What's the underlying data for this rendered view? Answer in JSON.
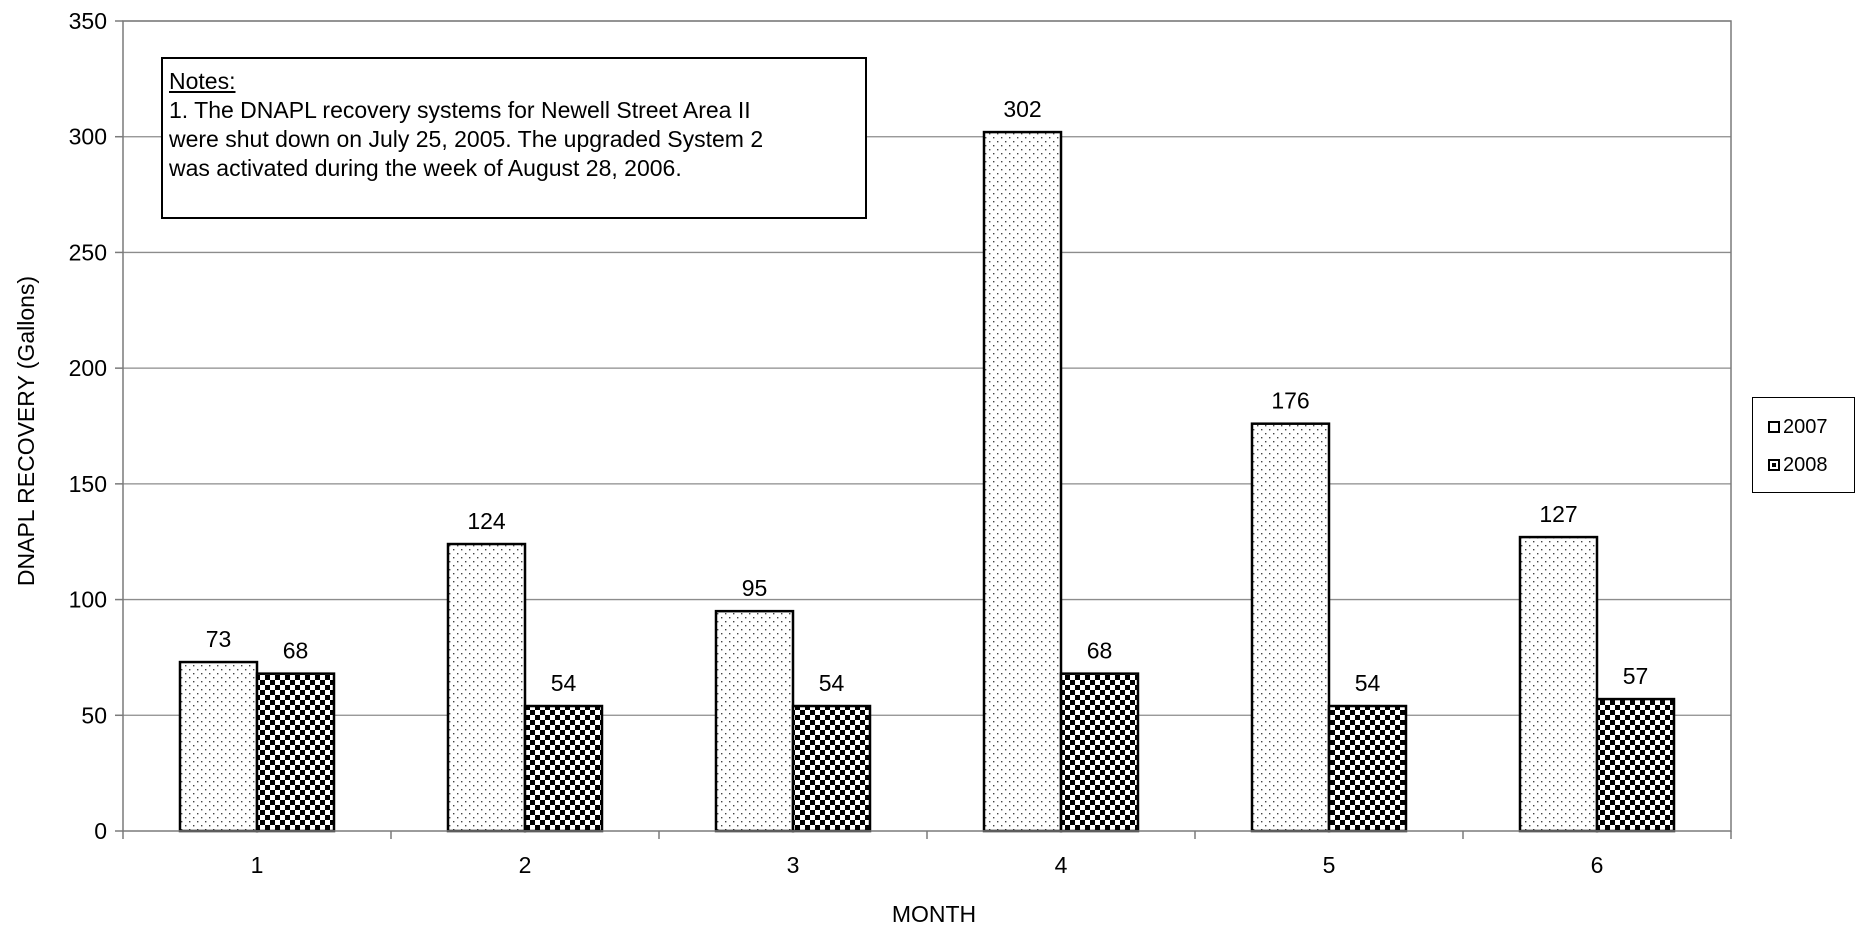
{
  "chart_data": {
    "type": "bar",
    "categories": [
      "1",
      "2",
      "3",
      "4",
      "5",
      "6"
    ],
    "series": [
      {
        "name": "2007",
        "values": [
          73,
          124,
          95,
          302,
          176,
          127
        ],
        "pattern": "dots"
      },
      {
        "name": "2008",
        "values": [
          68,
          54,
          54,
          68,
          54,
          57
        ],
        "pattern": "checker"
      }
    ],
    "title": "",
    "xlabel": "MONTH",
    "ylabel": "DNAPL RECOVERY (Gallons)",
    "ylim": [
      0,
      350
    ],
    "yticks": [
      0,
      50,
      100,
      150,
      200,
      250,
      300,
      350
    ],
    "grid": true,
    "legend_position": "right",
    "notes_title": "Notes:",
    "notes_lines": [
      "1.  The DNAPL recovery systems for Newell Street Area II",
      "were shut down on July 25, 2005.  The upgraded System 2",
      "was activated during the week of August 28, 2006."
    ]
  }
}
